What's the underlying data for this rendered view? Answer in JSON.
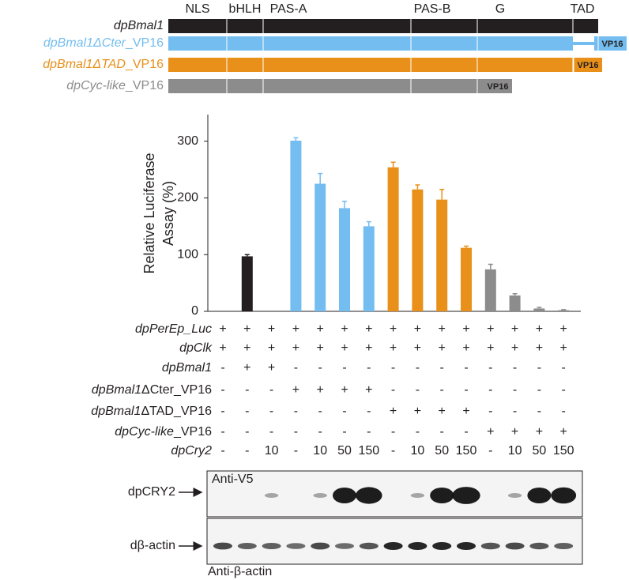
{
  "domain_diagram": {
    "labels": [
      "NLS",
      "bHLH",
      "PAS-A",
      "PAS-B",
      "G",
      "TAD"
    ],
    "constructs": [
      {
        "name": [
          "dpBmal1"
        ],
        "color": "#231f20"
      },
      {
        "name": [
          "dpBmal1ΔCter",
          "_VP16"
        ],
        "color": "#74bdf0",
        "tag": "VP16"
      },
      {
        "name": [
          "dpBmal1ΔTAD",
          "_VP16"
        ],
        "color": "#e8901a",
        "tag": "VP16"
      },
      {
        "name": [
          "dpCyc-like",
          "_VP16"
        ],
        "color": "#8c8c8c",
        "tag": "VP16"
      }
    ]
  },
  "chart_data": {
    "type": "bar",
    "ylabel": [
      "Relative Luciferase",
      "Assay (%)"
    ],
    "categories": [
      null,
      null,
      null,
      null,
      null,
      null,
      null,
      null,
      null,
      null,
      null,
      null,
      null,
      null,
      null
    ],
    "values": [
      0,
      97,
      0,
      301,
      225,
      182,
      150,
      254,
      215,
      197,
      112,
      74,
      28,
      5,
      2
    ],
    "errors": [
      null,
      3,
      null,
      5,
      18,
      12,
      8,
      9,
      8,
      18,
      3,
      9,
      3,
      2,
      1
    ],
    "colors": [
      "#231f20",
      "#231f20",
      "#231f20",
      "#74bdf0",
      "#74bdf0",
      "#74bdf0",
      "#74bdf0",
      "#e8901a",
      "#e8901a",
      "#e8901a",
      "#e8901a",
      "#8c8c8c",
      "#8c8c8c",
      "#8c8c8c",
      "#8c8c8c"
    ],
    "ylim": [
      0,
      347
    ],
    "yticks": [
      0,
      100,
      200,
      300
    ]
  },
  "table": {
    "rows": [
      {
        "label": [
          "dpPerEp_Luc"
        ],
        "cells": [
          "+",
          "+",
          "+",
          "+",
          "+",
          "+",
          "+",
          "+",
          "+",
          "+",
          "+",
          "+",
          "+",
          "+",
          "+"
        ]
      },
      {
        "label": [
          "dpClk"
        ],
        "cells": [
          "+",
          "+",
          "+",
          "+",
          "+",
          "+",
          "+",
          "+",
          "+",
          "+",
          "+",
          "+",
          "+",
          "+",
          "+"
        ]
      },
      {
        "label": [
          "dpBmal1"
        ],
        "cells": [
          "-",
          "+",
          "+",
          "-",
          "-",
          "-",
          "-",
          "-",
          "-",
          "-",
          "-",
          "-",
          "-",
          "-",
          "-"
        ]
      },
      {
        "label": [
          "dpBmal1",
          "ΔCter_VP16"
        ],
        "cells": [
          "-",
          "-",
          "-",
          "+",
          "+",
          "+",
          "+",
          "-",
          "-",
          "-",
          "-",
          "-",
          "-",
          "-",
          "-"
        ]
      },
      {
        "label": [
          "dpBmal1",
          "ΔTAD_VP16"
        ],
        "cells": [
          "-",
          "-",
          "-",
          "-",
          "-",
          "-",
          "-",
          "+",
          "+",
          "+",
          "+",
          "-",
          "-",
          "-",
          "-"
        ]
      },
      {
        "label": [
          "dpCyc-like",
          "_VP16"
        ],
        "cells": [
          "-",
          "-",
          "-",
          "-",
          "-",
          "-",
          "-",
          "-",
          "-",
          "-",
          "-",
          "+",
          "+",
          "+",
          "+"
        ]
      },
      {
        "label": [
          "dpCry2"
        ],
        "cells": [
          "-",
          "-",
          "10",
          "-",
          "10",
          "50",
          "150",
          "-",
          "10",
          "50",
          "150",
          "-",
          "10",
          "50",
          "150"
        ]
      }
    ]
  },
  "blots": [
    {
      "label": "dpCRY2",
      "antibody": "Anti-V5"
    },
    {
      "label": "dβ-actin",
      "antibody": "Anti-β-actin"
    }
  ]
}
